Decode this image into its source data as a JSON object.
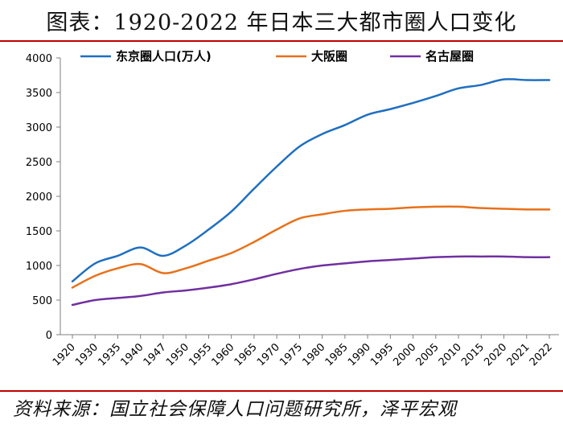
{
  "title": "图表：1920-2022 年日本三大都市圈人口变化",
  "source": "资料来源：国立社会保障人口问题研究所，泽平宏观",
  "chart_data": {
    "type": "line",
    "categories": [
      "1920",
      "1930",
      "1935",
      "1940",
      "1947",
      "1950",
      "1955",
      "1960",
      "1965",
      "1970",
      "1975",
      "1980",
      "1985",
      "1990",
      "1995",
      "2000",
      "2005",
      "2010",
      "2015",
      "2020",
      "2021",
      "2022"
    ],
    "ylim": [
      0,
      4000
    ],
    "yticks": [
      0,
      500,
      1000,
      1500,
      2000,
      2500,
      3000,
      3500,
      4000
    ],
    "grid": false,
    "legend_position": "top",
    "series": [
      {
        "name": "东京圈人口(万人)",
        "color": "#1f6fc0",
        "values": [
          770,
          1030,
          1140,
          1260,
          1140,
          1290,
          1520,
          1780,
          2110,
          2430,
          2720,
          2900,
          3030,
          3180,
          3260,
          3350,
          3450,
          3560,
          3610,
          3690,
          3680,
          3680
        ]
      },
      {
        "name": "大阪圈",
        "color": "#e8711a",
        "values": [
          680,
          850,
          960,
          1020,
          890,
          960,
          1070,
          1180,
          1340,
          1520,
          1680,
          1740,
          1790,
          1810,
          1820,
          1840,
          1850,
          1850,
          1830,
          1820,
          1810,
          1810
        ]
      },
      {
        "name": "名古屋圈",
        "color": "#7030a0",
        "values": [
          430,
          500,
          530,
          560,
          610,
          640,
          680,
          730,
          800,
          880,
          950,
          1000,
          1030,
          1060,
          1080,
          1100,
          1120,
          1130,
          1130,
          1130,
          1120,
          1120
        ]
      }
    ]
  }
}
